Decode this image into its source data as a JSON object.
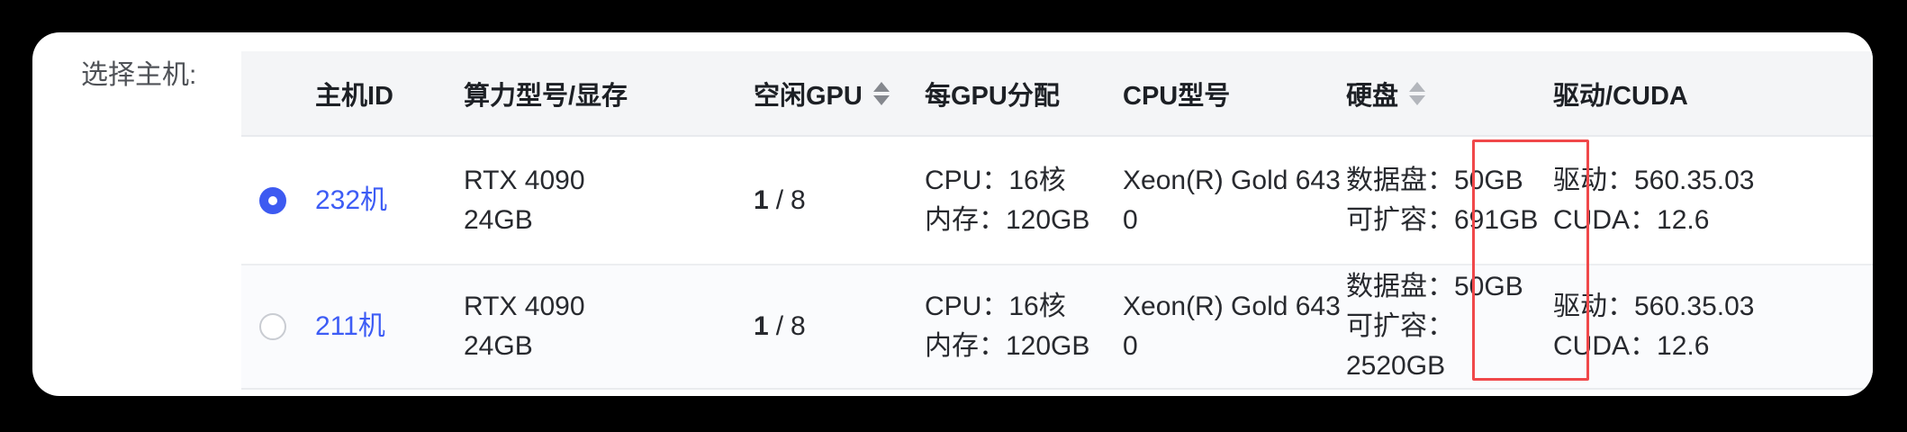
{
  "label": "选择主机:",
  "colors": {
    "page_background": "#000000",
    "card_background": "#ffffff",
    "header_background": "#f4f5f7",
    "row_alt_background": "#fafbfd",
    "link_blue": "#3d5cf5",
    "radio_selected_blue": "#3d5af1",
    "annotation_red": "#f0484a"
  },
  "table": {
    "header": {
      "host_id": "主机ID",
      "model_vram": "算力型号/显存",
      "idle_gpu": "空闲GPU",
      "per_gpu": "每GPU分配",
      "cpu_model": "CPU型号",
      "disk": "硬盘",
      "driver_cuda": "驱动/CUDA"
    },
    "rows": [
      {
        "selected": true,
        "host_id": "232机",
        "model_lines": {
          "0": "RTX 4090",
          "1": "24GB"
        },
        "idle_gpu": {
          "used": "1",
          "separator": "/",
          "total": "8"
        },
        "per_gpu_lines": {
          "0": "CPU：16核",
          "1": "内存：120GB"
        },
        "cpu_model_lines": {
          "0": "Xeon(R) Gold 643",
          "1": "0"
        },
        "disk_lines": {
          "0": "数据盘：50GB",
          "1": "可扩容：691GB"
        },
        "driver_lines": {
          "0": "驱动：560.35.03",
          "1": "CUDA：12.6"
        }
      },
      {
        "selected": false,
        "host_id": "211机",
        "model_lines": {
          "0": "RTX 4090",
          "1": "24GB"
        },
        "idle_gpu": {
          "used": "1",
          "separator": "/",
          "total": "8"
        },
        "per_gpu_lines": {
          "0": "CPU：16核",
          "1": "内存：120GB"
        },
        "cpu_model_lines": {
          "0": "Xeon(R) Gold 643",
          "1": "0"
        },
        "disk_lines": {
          "0": "数据盘：50GB",
          "1": "可扩容：2520GB"
        },
        "driver_lines": {
          "0": "驱动：560.35.03",
          "1": "CUDA：12.6"
        }
      }
    ]
  },
  "annotation": {
    "type": "red-highlight-box",
    "target": "disk-size-values"
  }
}
